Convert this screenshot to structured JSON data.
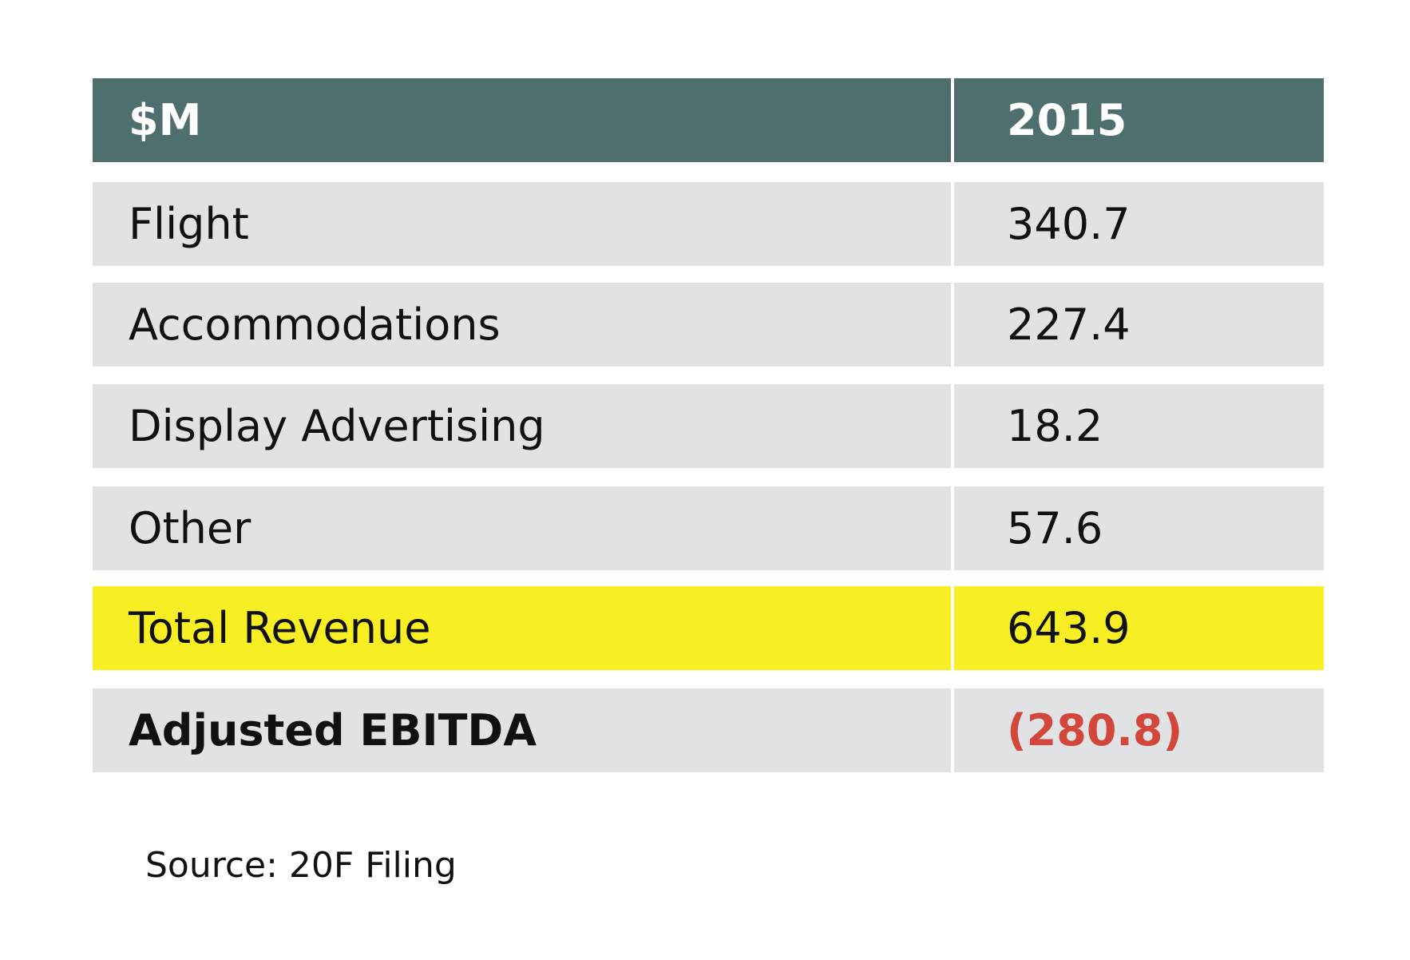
{
  "table": {
    "header": [
      "$M",
      "2015"
    ],
    "rows": [
      [
        "Flight",
        "340.7"
      ],
      [
        "Accommodations",
        "227.4"
      ],
      [
        "Display Advertising",
        "18.2"
      ],
      [
        "Other",
        "57.6"
      ],
      [
        "Total Revenue",
        "643.9"
      ],
      [
        "Adjusted EBITDA",
        "(280.8)"
      ]
    ]
  },
  "source": "Source: 20F Filing"
}
